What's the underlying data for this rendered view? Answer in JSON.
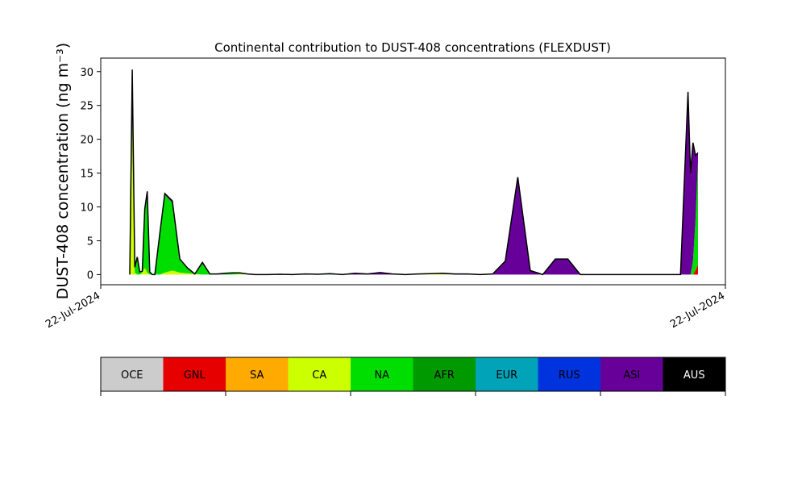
{
  "chart_data": {
    "type": "area",
    "title": "Continental contribution to DUST-408 concentrations (FLEXDUST)",
    "ylabel": "DUST-408 concentration (ng m⁻³)",
    "xlabel": "",
    "x_tick_labels": [
      "22-Jul-2024",
      "22-Jul-2024"
    ],
    "ylim": [
      -1.5,
      32
    ],
    "y_ticks": [
      0,
      5,
      10,
      15,
      20,
      25,
      30
    ],
    "grid": false,
    "x": [
      0,
      1,
      2,
      3,
      4,
      5,
      6,
      7,
      8,
      9,
      10,
      12,
      14,
      17,
      20,
      23,
      26,
      29,
      32,
      35,
      38,
      41,
      44,
      47,
      50,
      55,
      60,
      65,
      70,
      75,
      80,
      85,
      90,
      95,
      100,
      105,
      110,
      115,
      120,
      125,
      130,
      135,
      140,
      145,
      150,
      155,
      160,
      165,
      170,
      175,
      180,
      185,
      190,
      195,
      200,
      205,
      210,
      215,
      220,
      223,
      224,
      225,
      226,
      227
    ],
    "series": [
      {
        "name": "GNL",
        "color": "#e60000",
        "values": [
          0,
          0,
          0,
          0,
          0,
          0,
          0,
          0,
          0,
          0,
          0,
          0,
          0,
          0,
          0,
          0,
          0,
          0,
          0,
          0,
          0,
          0,
          0,
          0,
          0,
          0,
          0,
          0,
          0,
          0,
          0,
          0,
          0,
          0,
          0,
          0,
          0,
          0,
          0,
          0,
          0,
          0,
          0,
          0,
          0,
          0,
          0,
          0,
          0,
          0,
          0,
          0,
          0,
          0,
          0,
          0,
          0,
          0,
          0,
          0,
          0,
          0,
          0.6,
          1.5
        ]
      },
      {
        "name": "CA",
        "color": "#ccff00",
        "values": [
          0,
          22,
          0.3,
          0,
          0,
          0.3,
          1,
          0.3,
          0,
          0,
          0,
          0,
          0.3,
          0.6,
          0.3,
          0.2,
          0.1,
          0,
          0,
          0,
          0,
          0,
          0.1,
          0.1,
          0,
          0,
          0,
          0,
          0,
          0,
          0,
          0,
          0,
          0,
          0,
          0,
          0,
          0.1,
          0.15,
          0.1,
          0,
          0,
          0,
          0,
          0,
          0,
          0,
          0,
          0,
          0,
          0,
          0,
          0,
          0,
          0,
          0,
          0,
          0,
          0,
          0,
          0,
          0,
          0,
          0
        ]
      },
      {
        "name": "NA",
        "color": "#00dd00",
        "values": [
          0,
          2,
          0.5,
          2.3,
          0.3,
          0.2,
          8.5,
          11.5,
          0.3,
          0,
          0,
          6,
          11.5,
          10,
          1.9,
          0.7,
          0,
          1.6,
          0.1,
          0,
          0.1,
          0.2,
          0.1,
          0,
          0,
          0,
          0.05,
          0,
          0,
          0,
          0.05,
          0,
          0,
          0,
          0,
          0,
          0,
          0,
          0,
          0,
          0,
          0,
          0,
          0,
          0,
          0,
          0,
          0,
          0,
          0,
          0,
          0,
          0,
          0,
          0,
          0,
          0,
          0,
          0,
          0,
          0,
          2,
          7.5,
          15.3
        ]
      },
      {
        "name": "ASI",
        "color": "#660099",
        "values": [
          0,
          3,
          0.1,
          0.1,
          0,
          0,
          0.2,
          0.3,
          0,
          0,
          0,
          0.1,
          0.2,
          0.3,
          0.1,
          0.1,
          0,
          0.2,
          0,
          0.1,
          0.1,
          0.05,
          0.05,
          0,
          0,
          0,
          0,
          0,
          0.1,
          0.05,
          0.1,
          0,
          0.2,
          0.1,
          0.3,
          0.1,
          0,
          0,
          0,
          0.1,
          0.1,
          0.1,
          0,
          0.1,
          2,
          14.4,
          0.6,
          0,
          2.3,
          2.3,
          0,
          0,
          0,
          0,
          0,
          0,
          0,
          0,
          0,
          27,
          15,
          17.5,
          9.5,
          1.2
        ]
      },
      {
        "name": "AUS",
        "color": "#000000",
        "values": [
          0,
          3.3,
          0.2,
          0.2,
          0.1,
          0,
          0,
          0.2,
          0.1,
          0,
          0,
          0,
          0,
          0,
          0,
          0,
          0,
          0,
          0,
          0,
          0,
          0,
          0,
          0,
          0,
          0,
          0,
          0,
          0,
          0,
          0,
          0,
          0,
          0,
          0,
          0,
          0,
          0,
          0,
          0,
          0,
          0,
          0,
          0,
          0,
          0,
          0,
          0,
          0,
          0,
          0,
          0,
          0,
          0,
          0,
          0,
          0,
          0,
          0,
          0,
          0,
          0,
          0,
          0
        ]
      }
    ],
    "legend": {
      "items": [
        {
          "label": "OCE",
          "color": "#cccccc"
        },
        {
          "label": "GNL",
          "color": "#e60000"
        },
        {
          "label": "SA",
          "color": "#ffaa00"
        },
        {
          "label": "CA",
          "color": "#ccff00"
        },
        {
          "label": "NA",
          "color": "#00dd00"
        },
        {
          "label": "AFR",
          "color": "#009900"
        },
        {
          "label": "EUR",
          "color": "#00a3b8"
        },
        {
          "label": "RUS",
          "color": "#0033dd"
        },
        {
          "label": "ASI",
          "color": "#660099"
        },
        {
          "label": "AUS",
          "color": "#000000"
        }
      ]
    }
  }
}
